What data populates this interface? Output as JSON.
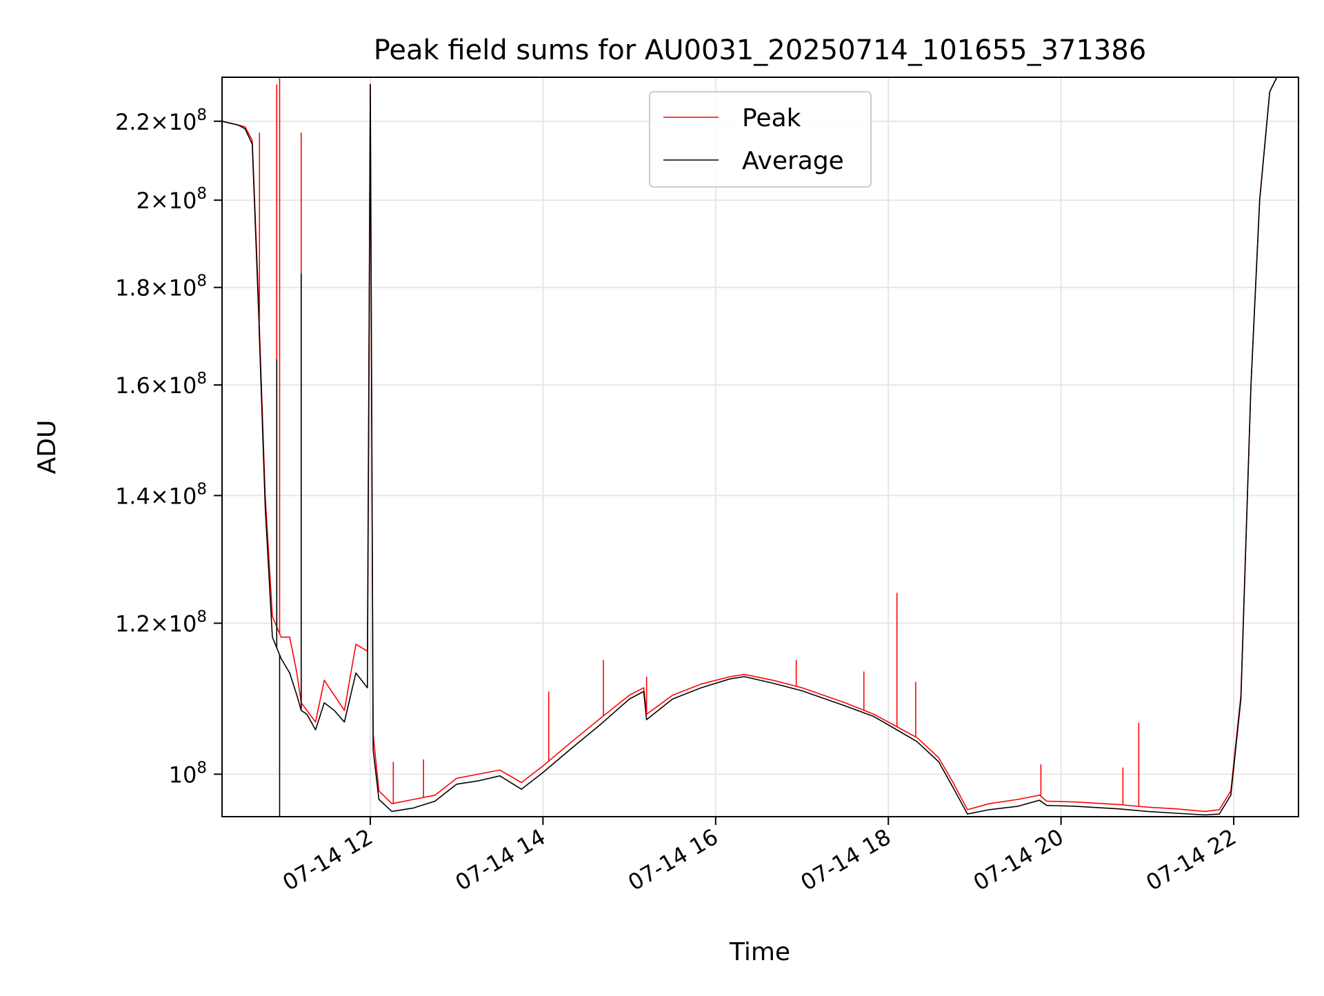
{
  "chart_data": {
    "type": "line",
    "title": "Peak field sums for AU0031_20250714_101655_371386",
    "xlabel": "Time",
    "ylabel": "ADU",
    "x_axis_type": "datetime",
    "xlim": [
      "2025-07-14T10:17",
      "2025-07-14T22:45"
    ],
    "ylim": [
      95000000,
      232000000
    ],
    "yscale": "log",
    "grid": true,
    "legend_position": "top-center",
    "x_ticks": [
      {
        "value": "2025-07-14T12:00",
        "label": "07-14 12"
      },
      {
        "value": "2025-07-14T14:00",
        "label": "07-14 14"
      },
      {
        "value": "2025-07-14T16:00",
        "label": "07-14 16"
      },
      {
        "value": "2025-07-14T18:00",
        "label": "07-14 18"
      },
      {
        "value": "2025-07-14T20:00",
        "label": "07-14 20"
      },
      {
        "value": "2025-07-14T22:00",
        "label": "07-14 22"
      }
    ],
    "y_ticks": [
      {
        "value": 100000000,
        "mantissa": "",
        "exponent": "8"
      },
      {
        "value": 120000000,
        "mantissa": "1.2",
        "exponent": "8"
      },
      {
        "value": 140000000,
        "mantissa": "1.4",
        "exponent": "8"
      },
      {
        "value": 160000000,
        "mantissa": "1.6",
        "exponent": "8"
      },
      {
        "value": 180000000,
        "mantissa": "1.8",
        "exponent": "8"
      },
      {
        "value": 200000000,
        "mantissa": "2",
        "exponent": "8"
      },
      {
        "value": 220000000,
        "mantissa": "2.2",
        "exponent": "8"
      }
    ],
    "series": [
      {
        "name": "Peak",
        "color": "#ff0000",
        "x": [
          "2025-07-14T10:17",
          "2025-07-14T10:28",
          "2025-07-14T10:33",
          "2025-07-14T10:38",
          "2025-07-14T10:42",
          "2025-07-14T10:47",
          "2025-07-14T10:52",
          "2025-07-14T10:58",
          "2025-07-14T11:04",
          "2025-07-14T11:09",
          "2025-07-14T11:12",
          "2025-07-14T11:16",
          "2025-07-14T11:22",
          "2025-07-14T11:28",
          "2025-07-14T11:35",
          "2025-07-14T11:42",
          "2025-07-14T11:50",
          "2025-07-14T11:58",
          "2025-07-14T12:00",
          "2025-07-14T12:02",
          "2025-07-14T12:06",
          "2025-07-14T12:15",
          "2025-07-14T12:30",
          "2025-07-14T12:45",
          "2025-07-14T13:00",
          "2025-07-14T13:15",
          "2025-07-14T13:30",
          "2025-07-14T13:45",
          "2025-07-14T14:00",
          "2025-07-14T14:20",
          "2025-07-14T14:40",
          "2025-07-14T15:00",
          "2025-07-14T15:10",
          "2025-07-14T15:12",
          "2025-07-14T15:30",
          "2025-07-14T15:50",
          "2025-07-14T16:10",
          "2025-07-14T16:20",
          "2025-07-14T16:40",
          "2025-07-14T17:00",
          "2025-07-14T17:30",
          "2025-07-14T17:50",
          "2025-07-14T18:05",
          "2025-07-14T18:20",
          "2025-07-14T18:35",
          "2025-07-14T18:45",
          "2025-07-14T18:55",
          "2025-07-14T19:10",
          "2025-07-14T19:30",
          "2025-07-14T19:45",
          "2025-07-14T19:50",
          "2025-07-14T20:10",
          "2025-07-14T20:40",
          "2025-07-14T21:00",
          "2025-07-14T21:20",
          "2025-07-14T21:40",
          "2025-07-14T21:50",
          "2025-07-14T21:58",
          "2025-07-14T22:05",
          "2025-07-14T22:12",
          "2025-07-14T22:18",
          "2025-07-14T22:25",
          "2025-07-14T22:30"
        ],
        "values": [
          220000000,
          219000000,
          218500000,
          215000000,
          180000000,
          140000000,
          121000000,
          118000000,
          118000000,
          113000000,
          109000000,
          108000000,
          106500000,
          112000000,
          110000000,
          108000000,
          117000000,
          116000000,
          230000000,
          105000000,
          98000000,
          96500000,
          97000000,
          97500000,
          99500000,
          100000000,
          100500000,
          99000000,
          101000000,
          104000000,
          107000000,
          110000000,
          111000000,
          107500000,
          110000000,
          111500000,
          112500000,
          112800000,
          112000000,
          111000000,
          109000000,
          107500000,
          106000000,
          104500000,
          102000000,
          99000000,
          95800000,
          96500000,
          97000000,
          97500000,
          96800000,
          96700000,
          96400000,
          96100000,
          95900000,
          95600000,
          95800000,
          98000000,
          110000000,
          160000000,
          200000000,
          228000000,
          232000000
        ]
      },
      {
        "name": "Average",
        "color": "#000000",
        "x": [
          "2025-07-14T10:17",
          "2025-07-14T10:28",
          "2025-07-14T10:33",
          "2025-07-14T10:38",
          "2025-07-14T10:42",
          "2025-07-14T10:47",
          "2025-07-14T10:52",
          "2025-07-14T10:58",
          "2025-07-14T11:04",
          "2025-07-14T11:09",
          "2025-07-14T11:12",
          "2025-07-14T11:16",
          "2025-07-14T11:22",
          "2025-07-14T11:28",
          "2025-07-14T11:35",
          "2025-07-14T11:42",
          "2025-07-14T11:50",
          "2025-07-14T11:58",
          "2025-07-14T12:00",
          "2025-07-14T12:02",
          "2025-07-14T12:06",
          "2025-07-14T12:15",
          "2025-07-14T12:30",
          "2025-07-14T12:45",
          "2025-07-14T13:00",
          "2025-07-14T13:15",
          "2025-07-14T13:30",
          "2025-07-14T13:45",
          "2025-07-14T14:00",
          "2025-07-14T14:20",
          "2025-07-14T14:40",
          "2025-07-14T15:00",
          "2025-07-14T15:10",
          "2025-07-14T15:12",
          "2025-07-14T15:30",
          "2025-07-14T15:50",
          "2025-07-14T16:10",
          "2025-07-14T16:20",
          "2025-07-14T16:40",
          "2025-07-14T17:00",
          "2025-07-14T17:30",
          "2025-07-14T17:50",
          "2025-07-14T18:05",
          "2025-07-14T18:20",
          "2025-07-14T18:35",
          "2025-07-14T18:45",
          "2025-07-14T18:55",
          "2025-07-14T19:10",
          "2025-07-14T19:30",
          "2025-07-14T19:45",
          "2025-07-14T19:50",
          "2025-07-14T20:10",
          "2025-07-14T20:40",
          "2025-07-14T21:00",
          "2025-07-14T21:20",
          "2025-07-14T21:40",
          "2025-07-14T21:50",
          "2025-07-14T21:58",
          "2025-07-14T22:05",
          "2025-07-14T22:12",
          "2025-07-14T22:18",
          "2025-07-14T22:25",
          "2025-07-14T22:30"
        ],
        "values": [
          220000000,
          219000000,
          218000000,
          214000000,
          178000000,
          138000000,
          118000000,
          115000000,
          113000000,
          110000000,
          108000000,
          107500000,
          105500000,
          109000000,
          108000000,
          106500000,
          113000000,
          111000000,
          230000000,
          103000000,
          97000000,
          95600000,
          96000000,
          96800000,
          98800000,
          99200000,
          99800000,
          98200000,
          100200000,
          103200000,
          106200000,
          109500000,
          110500000,
          106800000,
          109500000,
          111000000,
          112200000,
          112500000,
          111600000,
          110600000,
          108600000,
          107200000,
          105600000,
          104000000,
          101500000,
          98400000,
          95300000,
          95800000,
          96200000,
          96900000,
          96300000,
          96200000,
          95900000,
          95600000,
          95400000,
          95200000,
          95300000,
          97500000,
          109500000,
          160000000,
          200000000,
          228000000,
          232000000
        ]
      }
    ],
    "spikes": [
      {
        "series": "Peak",
        "time": "2025-07-14T10:43",
        "value": 217000000
      },
      {
        "series": "Peak",
        "time": "2025-07-14T10:55",
        "value": 230000000
      },
      {
        "series": "Peak",
        "time": "2025-07-14T10:57",
        "value": 232000000
      },
      {
        "series": "Peak",
        "time": "2025-07-14T11:12",
        "value": 217000000
      },
      {
        "series": "Peak",
        "time": "2025-07-14T12:16",
        "value": 101500000
      },
      {
        "series": "Peak",
        "time": "2025-07-14T12:37",
        "value": 101800000
      },
      {
        "series": "Peak",
        "time": "2025-07-14T14:04",
        "value": 110500000
      },
      {
        "series": "Peak",
        "time": "2025-07-14T14:42",
        "value": 114800000
      },
      {
        "series": "Peak",
        "time": "2025-07-14T15:12",
        "value": 112500000
      },
      {
        "series": "Peak",
        "time": "2025-07-14T16:56",
        "value": 114800000
      },
      {
        "series": "Peak",
        "time": "2025-07-14T17:43",
        "value": 113200000
      },
      {
        "series": "Peak",
        "time": "2025-07-14T18:06",
        "value": 124500000
      },
      {
        "series": "Peak",
        "time": "2025-07-14T18:19",
        "value": 111800000
      },
      {
        "series": "Peak",
        "time": "2025-07-14T19:46",
        "value": 101200000
      },
      {
        "series": "Peak",
        "time": "2025-07-14T20:43",
        "value": 100800000
      },
      {
        "series": "Peak",
        "time": "2025-07-14T20:54",
        "value": 106400000
      },
      {
        "series": "Average",
        "time": "2025-07-14T10:57",
        "value": 95000000
      },
      {
        "series": "Average",
        "time": "2025-07-14T10:55",
        "value": 165000000
      },
      {
        "series": "Average",
        "time": "2025-07-14T11:12",
        "value": 183000000
      }
    ]
  }
}
